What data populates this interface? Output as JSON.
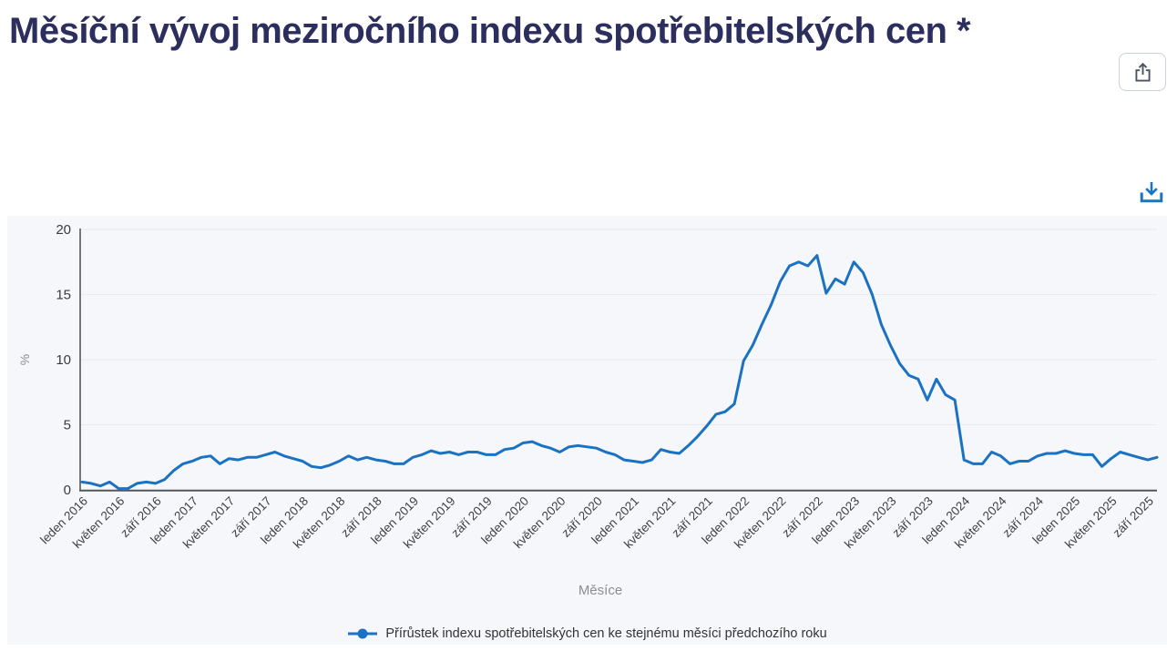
{
  "page": {
    "title": "Měsíční vývoj meziročního indexu spotřebitelských cen *"
  },
  "toolbar": {
    "share_icon": "share-icon",
    "download_icon": "download-icon"
  },
  "colors": {
    "title": "#2c2e5e",
    "accent_blue": "#1a73c8",
    "line_blue": "#1b72c2",
    "chart_bg": "#f5f7fa",
    "grid": "#e9ebee",
    "axis": "#55575c",
    "tick_text": "#3d3f45",
    "axis_title_text": "#8a8d91"
  },
  "chart_data": {
    "type": "line",
    "title": "",
    "xlabel": "Měsíce",
    "ylabel": "%",
    "ylim": [
      0,
      20
    ],
    "yticks": [
      0,
      5,
      10,
      15,
      20
    ],
    "grid": true,
    "legend_position": "bottom",
    "x_tick_every": 4,
    "x_tick_labels": [
      "leden 2016",
      "květen 2016",
      "září 2016",
      "leden 2017",
      "květen 2017",
      "září 2017",
      "leden 2018",
      "květen 2018",
      "září 2018",
      "leden 2019",
      "květen 2019",
      "září 2019",
      "leden 2020",
      "květen 2020",
      "září 2020",
      "leden 2021",
      "květen 2021",
      "září 2021",
      "leden 2022",
      "květen 2022",
      "září 2022",
      "leden 2023",
      "květen 2023",
      "září 2023",
      "leden 2024",
      "květen 2024",
      "září 2024",
      "leden 2025",
      "květen 2025",
      "září 2025"
    ],
    "series": [
      {
        "name": "Přírůstek indexu spotřebitelských cen ke stejnému měsíci předchozího roku",
        "color": "#1b72c2",
        "values": [
          0.6,
          0.5,
          0.3,
          0.6,
          0.1,
          0.1,
          0.5,
          0.6,
          0.5,
          0.8,
          1.5,
          2.0,
          2.2,
          2.5,
          2.6,
          2.0,
          2.4,
          2.3,
          2.5,
          2.5,
          2.7,
          2.9,
          2.6,
          2.4,
          2.2,
          1.8,
          1.7,
          1.9,
          2.2,
          2.6,
          2.3,
          2.5,
          2.3,
          2.2,
          2.0,
          2.0,
          2.5,
          2.7,
          3.0,
          2.8,
          2.9,
          2.7,
          2.9,
          2.9,
          2.7,
          2.7,
          3.1,
          3.2,
          3.6,
          3.7,
          3.4,
          3.2,
          2.9,
          3.3,
          3.4,
          3.3,
          3.2,
          2.9,
          2.7,
          2.3,
          2.2,
          2.1,
          2.3,
          3.1,
          2.9,
          2.8,
          3.4,
          4.1,
          4.9,
          5.8,
          6.0,
          6.6,
          9.9,
          11.1,
          12.7,
          14.2,
          16.0,
          17.2,
          17.5,
          17.2,
          18.0,
          15.1,
          16.2,
          15.8,
          17.5,
          16.7,
          15.0,
          12.7,
          11.1,
          9.7,
          8.8,
          8.5,
          6.9,
          8.5,
          7.3,
          6.9,
          2.3,
          2.0,
          2.0,
          2.9,
          2.6,
          2.0,
          2.2,
          2.2,
          2.6,
          2.8,
          2.8,
          3.0,
          2.8,
          2.7,
          2.7,
          1.8,
          2.4,
          2.9,
          2.7,
          2.5,
          2.3,
          2.5
        ]
      }
    ]
  }
}
